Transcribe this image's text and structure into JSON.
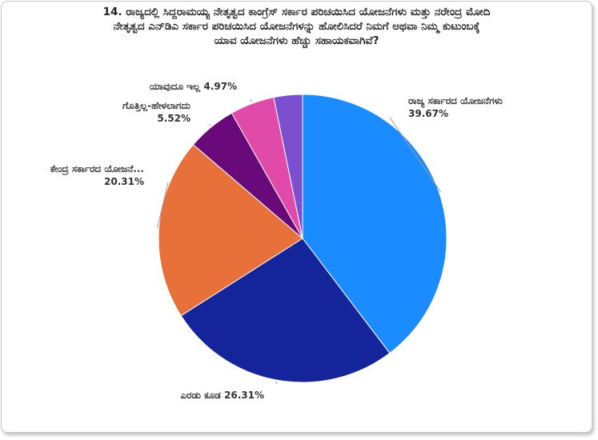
{
  "chart_data": {
    "type": "pie",
    "title_lines": [
      "14. ರಾಜ್ಯದಲ್ಲಿ ಸಿದ್ದರಾಮಯ್ಯ ನೇತೃತ್ವದ ಕಾಂಗ್ರೆಸ್ ಸರ್ಕಾರ ಪರಿಚಯಿಸಿದ ಯೋಜನೆಗಳು ಮತ್ತು ನರೇಂದ್ರ ಮೋದಿ",
      "ನೇತೃತ್ವದ ಎನ್‌ಡಿಎ ಸರ್ಕಾರ ಪರಿಚಯಿಸಿದ ಯೋಜನೆಗಳನ್ನು ಹೋಲಿಸಿದರೆ ನಿಮಗೆ ಅಥವಾ ನಿಮ್ಮ ಕುಟುಂಬಕ್ಕೆ",
      "ಯಾವ ಯೋಜನೆಗಳು ಹೆಚ್ಚು ಸಹಾಯಕವಾಗಿವೆ?"
    ],
    "slices": [
      {
        "label": "ರಾಜ್ಯ ಸರ್ಕಾರದ ಯೋಜನೆಗಳು",
        "value": 39.67,
        "value_label": "39.67%",
        "color": "#1a8cff"
      },
      {
        "label": "ಎರಡು ಕೂಡ",
        "value": 26.31,
        "value_label": "26.31%",
        "color": "#14249a"
      },
      {
        "label": "ಕೇಂದ್ರ ಸರ್ಕಾರದ ಯೋಜನೆ...",
        "value": 20.31,
        "value_label": "20.31%",
        "color": "#e8703a"
      },
      {
        "label": "ಗೊತ್ತಿಲ್ಲ-ಹೇಳಲಾಗದು",
        "value": 5.52,
        "value_label": "5.52%",
        "color": "#6a0a7a"
      },
      {
        "label": "ಯಾವುದೂ ಇಲ್ಲ",
        "value": 4.97,
        "value_label": "4.97%",
        "color": "#e04aa8"
      },
      {
        "label": "",
        "value": 3.22,
        "value_label": "",
        "color": "#7b4fd0"
      }
    ]
  }
}
